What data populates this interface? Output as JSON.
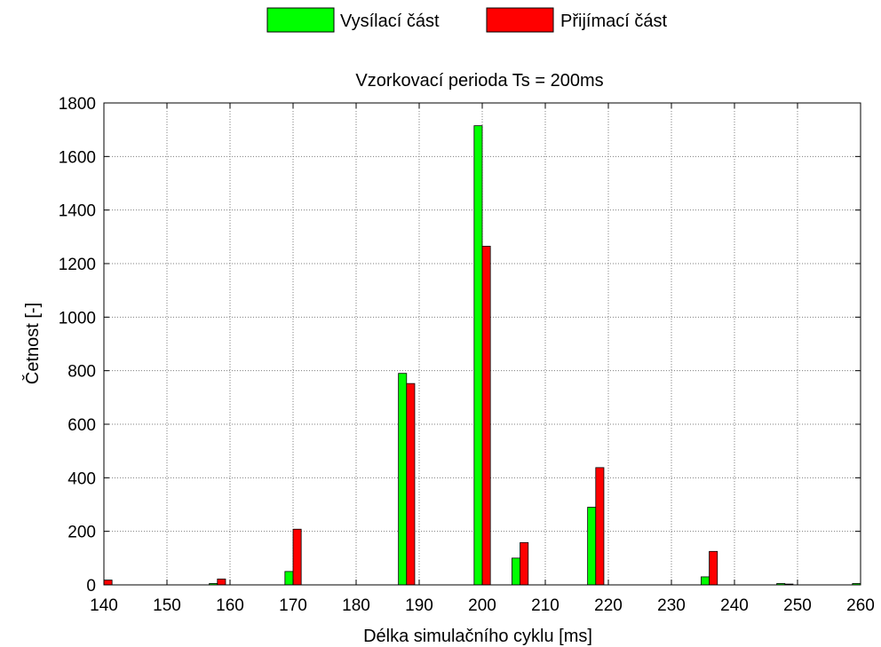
{
  "chart_data": {
    "type": "bar",
    "title": "Vzorkovací perioda Ts = 200ms",
    "xlabel": "Délka simulačního cyklu [ms]",
    "ylabel": "Četnost [-]",
    "xlim": [
      140,
      260
    ],
    "ylim": [
      0,
      1800
    ],
    "xticks": [
      140,
      150,
      160,
      170,
      180,
      190,
      200,
      210,
      220,
      230,
      240,
      250,
      260
    ],
    "yticks": [
      0,
      200,
      400,
      600,
      800,
      1000,
      1200,
      1400,
      1600,
      1800
    ],
    "grid": true,
    "legend_position": "top-center, outside plot",
    "bin_centers": [
      140,
      146,
      152,
      158,
      164,
      170,
      176,
      182,
      188,
      194,
      200,
      206,
      212,
      218,
      224,
      230,
      236,
      242,
      248,
      254,
      260
    ],
    "series": [
      {
        "name": "Vysílací část",
        "color": "#00ff00",
        "values": [
          0,
          0,
          0,
          5,
          0,
          50,
          0,
          0,
          790,
          0,
          1715,
          100,
          0,
          290,
          0,
          0,
          30,
          0,
          5,
          0,
          5
        ]
      },
      {
        "name": "Přijímací část",
        "color": "#ff0000",
        "values": [
          18,
          0,
          0,
          22,
          0,
          208,
          0,
          0,
          752,
          0,
          1265,
          158,
          0,
          438,
          0,
          0,
          125,
          0,
          3,
          0,
          0
        ]
      }
    ]
  }
}
